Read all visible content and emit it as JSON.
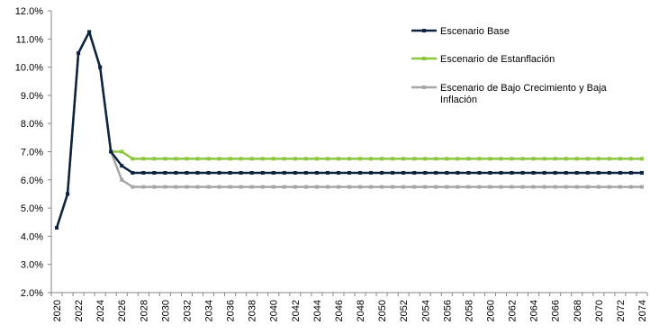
{
  "chart_data": {
    "type": "line",
    "title": "",
    "xlabel": "",
    "ylabel": "",
    "ylim": [
      0.02,
      0.12
    ],
    "xlim": [
      2020,
      2074
    ],
    "y_ticks": [
      "2.0%",
      "3.0%",
      "4.0%",
      "5.0%",
      "6.0%",
      "7.0%",
      "8.0%",
      "9.0%",
      "10.0%",
      "11.0%",
      "12.0%"
    ],
    "x_ticks": [
      "2020",
      "2022",
      "2024",
      "2026",
      "2028",
      "2030",
      "2032",
      "2034",
      "2036",
      "2038",
      "2040",
      "2042",
      "2044",
      "2046",
      "2048",
      "2050",
      "2052",
      "2054",
      "2056",
      "2058",
      "2060",
      "2062",
      "2064",
      "2066",
      "2068",
      "2070",
      "2072",
      "2074"
    ],
    "grid": false,
    "legend_position": "top-right",
    "series": [
      {
        "name": "Escenario Base",
        "color": "#0d2340",
        "anchors": [
          [
            2020,
            0.043
          ],
          [
            2021,
            0.055
          ],
          [
            2022,
            0.105
          ],
          [
            2023,
            0.1125
          ],
          [
            2024,
            0.1
          ],
          [
            2025,
            0.07
          ],
          [
            2026,
            0.065
          ],
          [
            2027,
            0.0625
          ],
          [
            2074,
            0.0625
          ]
        ]
      },
      {
        "name": "Escenario de Estanflación",
        "color": "#8cc63f",
        "anchors": [
          [
            2020,
            0.043
          ],
          [
            2021,
            0.055
          ],
          [
            2022,
            0.105
          ],
          [
            2023,
            0.1125
          ],
          [
            2024,
            0.1
          ],
          [
            2025,
            0.07
          ],
          [
            2026,
            0.07
          ],
          [
            2027,
            0.0675
          ],
          [
            2074,
            0.0675
          ]
        ]
      },
      {
        "name": "Escenario de Bajo Crecimiento y Baja Inflación",
        "legend_lines": [
          "Escenario de Bajo Crecimiento y Baja",
          "Inflación"
        ],
        "color": "#a6a6a6",
        "anchors": [
          [
            2020,
            0.043
          ],
          [
            2021,
            0.055
          ],
          [
            2022,
            0.105
          ],
          [
            2023,
            0.1125
          ],
          [
            2024,
            0.1
          ],
          [
            2025,
            0.07
          ],
          [
            2026,
            0.06
          ],
          [
            2027,
            0.0575
          ],
          [
            2074,
            0.0575
          ]
        ]
      }
    ]
  }
}
